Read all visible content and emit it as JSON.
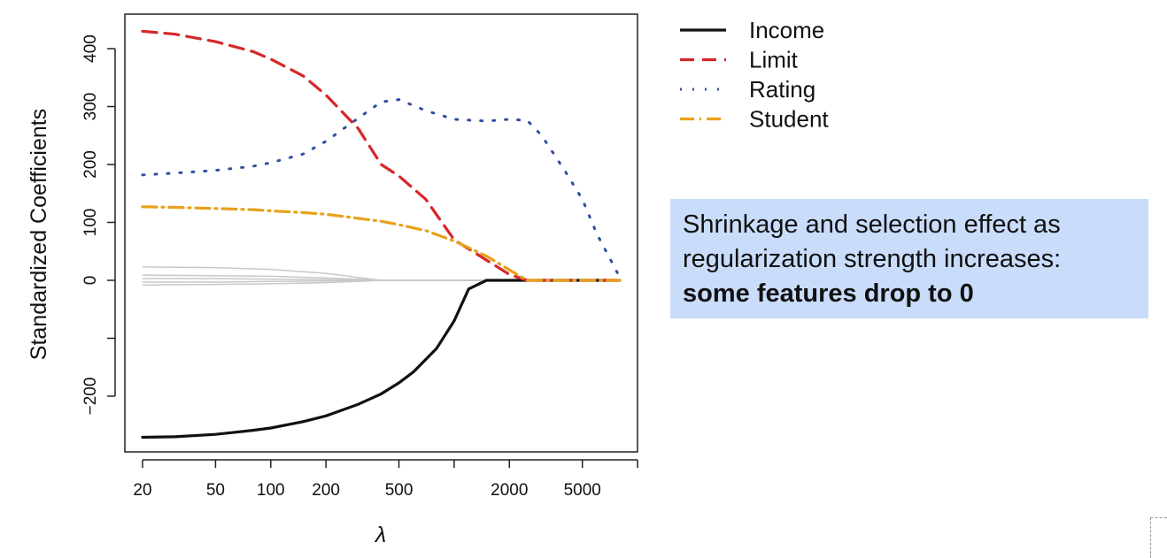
{
  "chart_data": {
    "type": "line",
    "xlabel": "λ",
    "ylabel": "Standardized Coefficients",
    "x_scale": "log",
    "xlim": [
      15,
      10000
    ],
    "ylim": [
      -300,
      450
    ],
    "x_ticks": [
      20,
      50,
      100,
      200,
      500,
      1000,
      2000,
      5000,
      10000
    ],
    "x_tick_labels": [
      "20",
      "50",
      "100",
      "200",
      "500",
      "",
      "2000",
      "5000",
      ""
    ],
    "y_ticks": [
      -200,
      -100,
      0,
      100,
      200,
      300,
      400
    ],
    "y_tick_labels": [
      "−200",
      "",
      "0",
      "100",
      "200",
      "300",
      "400"
    ],
    "legend_position": "outside-top-right",
    "series": [
      {
        "name": "Income",
        "color": "#111111",
        "dash": "solid",
        "width": 3.2,
        "x": [
          20,
          30,
          50,
          80,
          100,
          150,
          200,
          300,
          400,
          500,
          600,
          800,
          1000,
          1200,
          1500,
          2000,
          3000,
          5000,
          8000
        ],
        "y": [
          -271,
          -270,
          -266,
          -259,
          -255,
          -244,
          -234,
          -214,
          -196,
          -177,
          -158,
          -118,
          -70,
          -15,
          0,
          0,
          0,
          0,
          0
        ]
      },
      {
        "name": "Limit",
        "color": "#d62728",
        "dash": "16,9",
        "width": 3.2,
        "x": [
          20,
          30,
          50,
          80,
          100,
          150,
          200,
          300,
          400,
          500,
          700,
          1000,
          1500,
          2000,
          2500,
          3000,
          5000,
          8000
        ],
        "y": [
          430,
          425,
          412,
          395,
          382,
          353,
          320,
          262,
          200,
          180,
          140,
          70,
          35,
          10,
          0,
          0,
          0,
          0
        ]
      },
      {
        "name": "Rating",
        "color": "#2f4f9f",
        "dash": "2,12",
        "width": 3,
        "x": [
          20,
          30,
          50,
          80,
          100,
          150,
          200,
          300,
          400,
          500,
          700,
          1000,
          1500,
          2000,
          2500,
          3000,
          4000,
          5000,
          6000,
          7000,
          8000
        ],
        "y": [
          182,
          185,
          190,
          197,
          203,
          218,
          240,
          280,
          308,
          312,
          293,
          278,
          275,
          278,
          276,
          250,
          190,
          140,
          80,
          40,
          5
        ]
      },
      {
        "name": "Student",
        "color": "#e8a11a",
        "dash": "16,6,2,6",
        "width": 3.2,
        "x": [
          20,
          30,
          50,
          80,
          100,
          150,
          200,
          300,
          400,
          500,
          700,
          1000,
          1500,
          2000,
          2500,
          3000,
          5000,
          8000
        ],
        "y": [
          127,
          126,
          124,
          122,
          120,
          117,
          114,
          107,
          102,
          96,
          86,
          68,
          42,
          18,
          0,
          0,
          0,
          0
        ]
      }
    ],
    "background_series_color": "#c8c8c8",
    "background_series": [
      {
        "x": [
          20,
          50,
          100,
          200,
          300,
          400,
          8000
        ],
        "y": [
          23,
          22,
          19,
          12,
          5,
          0,
          0
        ]
      },
      {
        "x": [
          20,
          50,
          100,
          200,
          300,
          400,
          8000
        ],
        "y": [
          9,
          8,
          7,
          4,
          2,
          0,
          0
        ]
      },
      {
        "x": [
          20,
          50,
          100,
          200,
          300,
          400,
          8000
        ],
        "y": [
          3,
          3,
          2,
          1,
          0,
          0,
          0
        ]
      },
      {
        "x": [
          20,
          50,
          100,
          200,
          300,
          400,
          8000
        ],
        "y": [
          -3,
          -3,
          -2,
          -1,
          0,
          0,
          0
        ]
      },
      {
        "x": [
          20,
          50,
          100,
          200,
          300,
          400,
          8000
        ],
        "y": [
          -8,
          -7,
          -6,
          -4,
          -2,
          0,
          0
        ]
      }
    ]
  },
  "callout": {
    "line1": "Shrinkage and selection effect as",
    "line2": "regularization strength increases:",
    "line3": "some features drop to 0"
  }
}
